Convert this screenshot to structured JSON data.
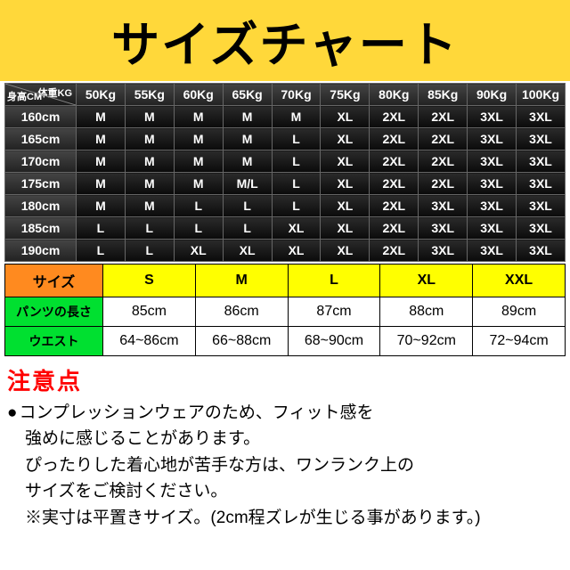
{
  "title": {
    "text": "サイズチャート",
    "color": "#000000",
    "background": "#ffd83a",
    "fontsize": 54
  },
  "chart": {
    "weight_label": "体重KG",
    "height_label": "身高CM",
    "weights": [
      "50Kg",
      "55Kg",
      "60Kg",
      "65Kg",
      "70Kg",
      "75Kg",
      "80Kg",
      "85Kg",
      "90Kg",
      "100Kg"
    ],
    "heights": [
      "160cm",
      "165cm",
      "170cm",
      "175cm",
      "180cm",
      "185cm",
      "190cm"
    ],
    "cells": [
      [
        "M",
        "M",
        "M",
        "M",
        "M",
        "XL",
        "2XL",
        "2XL",
        "3XL",
        "3XL"
      ],
      [
        "M",
        "M",
        "M",
        "M",
        "L",
        "XL",
        "2XL",
        "2XL",
        "3XL",
        "3XL"
      ],
      [
        "M",
        "M",
        "M",
        "M",
        "L",
        "XL",
        "2XL",
        "2XL",
        "3XL",
        "3XL"
      ],
      [
        "M",
        "M",
        "M",
        "M/L",
        "L",
        "XL",
        "2XL",
        "2XL",
        "3XL",
        "3XL"
      ],
      [
        "M",
        "M",
        "L",
        "L",
        "L",
        "XL",
        "2XL",
        "3XL",
        "3XL",
        "3XL"
      ],
      [
        "L",
        "L",
        "L",
        "L",
        "XL",
        "XL",
        "2XL",
        "3XL",
        "3XL",
        "3XL"
      ],
      [
        "L",
        "L",
        "XL",
        "XL",
        "XL",
        "XL",
        "2XL",
        "3XL",
        "3XL",
        "3XL"
      ]
    ],
    "header_bg": "linear-gradient(#444,#222)",
    "cell_bg": "linear-gradient(#2a2a2a,#0a0a0a)",
    "text_color": "#ffffff",
    "border_color": "#666666",
    "fontsize": 14
  },
  "size_table": {
    "header_row": {
      "label": "サイズ",
      "label_bg": "#ff8a1f",
      "cells_bg": "#ffff00",
      "sizes": [
        "S",
        "M",
        "L",
        "XL",
        "XXL"
      ]
    },
    "rows": [
      {
        "label": "パンツの長さ",
        "label_bg": "#00e030",
        "cells_bg": "#ffffff",
        "values": [
          "85cm",
          "86cm",
          "87cm",
          "88cm",
          "89cm"
        ]
      },
      {
        "label": "ウエスト",
        "label_bg": "#00e030",
        "cells_bg": "#ffffff",
        "values": [
          "64~86cm",
          "66~88cm",
          "68~90cm",
          "70~92cm",
          "72~94cm"
        ]
      }
    ],
    "fontsize": 16,
    "border_color": "#000000"
  },
  "caution": {
    "title": "注意点",
    "title_color": "#ff0000",
    "title_fontsize": 26,
    "lines": [
      "コンプレッションウェアのため、フィット感を",
      "強めに感じることがあります。",
      "ぴったりした着心地が苦手な方は、ワンランク上の",
      "サイズをご検討ください。",
      "※実寸は平置きサイズ。(2cm程ズレが生じる事があります。)"
    ],
    "body_color": "#000000",
    "body_fontsize": 19
  }
}
